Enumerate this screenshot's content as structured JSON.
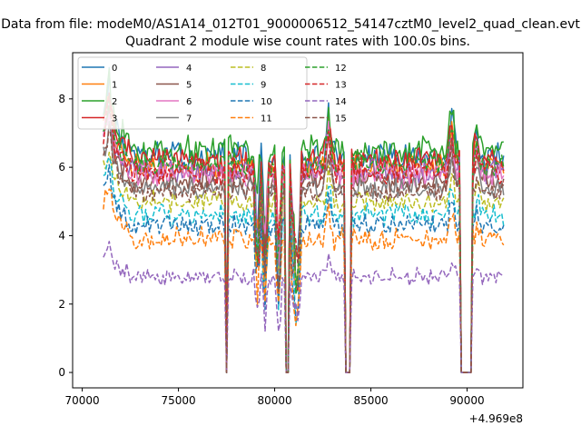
{
  "chart_data": {
    "type": "line",
    "suptitle": "Data from file: modeM0/AS1A14_012T01_9000006512_54147cztM0_level2_quad_clean.evt",
    "title": "Quadrant 2 module wise count rates with 100.0s bins.",
    "xlabel": "",
    "ylabel": "",
    "x_offset_label": "+4.969e8",
    "xlim": [
      69500,
      92900
    ],
    "ylim": [
      -0.45,
      9.35
    ],
    "x_ticks": [
      70000,
      75000,
      80000,
      85000,
      90000
    ],
    "x_tick_labels": [
      "70000",
      "75000",
      "80000",
      "85000",
      "90000"
    ],
    "y_ticks": [
      0,
      2,
      4,
      6,
      8
    ],
    "y_tick_labels": [
      "0",
      "2",
      "4",
      "6",
      "8"
    ],
    "x_range": [
      71100,
      91900
    ],
    "bin_size": 100,
    "gaps": [
      [
        77500,
        77550
      ],
      [
        80600,
        80750
      ],
      [
        83650,
        83950
      ],
      [
        89700,
        90200
      ]
    ],
    "dips": [
      [
        79100,
        0.8
      ],
      [
        79500,
        0.7
      ],
      [
        80200,
        0.65
      ],
      [
        81000,
        0.75
      ],
      [
        81200,
        0.6
      ]
    ],
    "spikes": [
      [
        71400,
        1.15
      ],
      [
        82800,
        1.2
      ],
      [
        89200,
        1.2
      ],
      [
        90500,
        1.1
      ]
    ],
    "legend": {
      "location": "top-left",
      "columns": 4
    },
    "series": [
      {
        "name": "0",
        "color": "#1f77b4",
        "dash": "solid",
        "level": 6.3,
        "start": 7.7,
        "amp": 0.35
      },
      {
        "name": "1",
        "color": "#ff7f0e",
        "dash": "solid",
        "level": 6.0,
        "start": 7.4,
        "amp": 0.3
      },
      {
        "name": "2",
        "color": "#2ca02c",
        "dash": "solid",
        "level": 6.5,
        "start": 7.8,
        "amp": 0.35
      },
      {
        "name": "3",
        "color": "#d62728",
        "dash": "solid",
        "level": 6.2,
        "start": 7.5,
        "amp": 0.3
      },
      {
        "name": "4",
        "color": "#9467bd",
        "dash": "solid",
        "level": 5.9,
        "start": 7.0,
        "amp": 0.3
      },
      {
        "name": "5",
        "color": "#8c564b",
        "dash": "solid",
        "level": 5.6,
        "start": 6.8,
        "amp": 0.25
      },
      {
        "name": "6",
        "color": "#e377c2",
        "dash": "solid",
        "level": 5.8,
        "start": 6.9,
        "amp": 0.3
      },
      {
        "name": "7",
        "color": "#7f7f7f",
        "dash": "solid",
        "level": 5.4,
        "start": 6.5,
        "amp": 0.25
      },
      {
        "name": "8",
        "color": "#bcbd22",
        "dash": "dashed",
        "level": 5.0,
        "start": 6.0,
        "amp": 0.25
      },
      {
        "name": "9",
        "color": "#17becf",
        "dash": "dashed",
        "level": 4.6,
        "start": 5.7,
        "amp": 0.25
      },
      {
        "name": "10",
        "color": "#1f77b4",
        "dash": "dashed",
        "level": 4.3,
        "start": 5.3,
        "amp": 0.25
      },
      {
        "name": "11",
        "color": "#ff7f0e",
        "dash": "dashed",
        "level": 3.9,
        "start": 5.0,
        "amp": 0.25
      },
      {
        "name": "12",
        "color": "#2ca02c",
        "dash": "dashed",
        "level": 6.1,
        "start": 7.2,
        "amp": 0.3
      },
      {
        "name": "13",
        "color": "#d62728",
        "dash": "dashed",
        "level": 5.9,
        "start": 7.0,
        "amp": 0.3
      },
      {
        "name": "14",
        "color": "#9467bd",
        "dash": "dashed",
        "level": 2.8,
        "start": 3.5,
        "amp": 0.2
      },
      {
        "name": "15",
        "color": "#8c564b",
        "dash": "dashed",
        "level": 5.3,
        "start": 6.4,
        "amp": 0.25
      }
    ]
  }
}
